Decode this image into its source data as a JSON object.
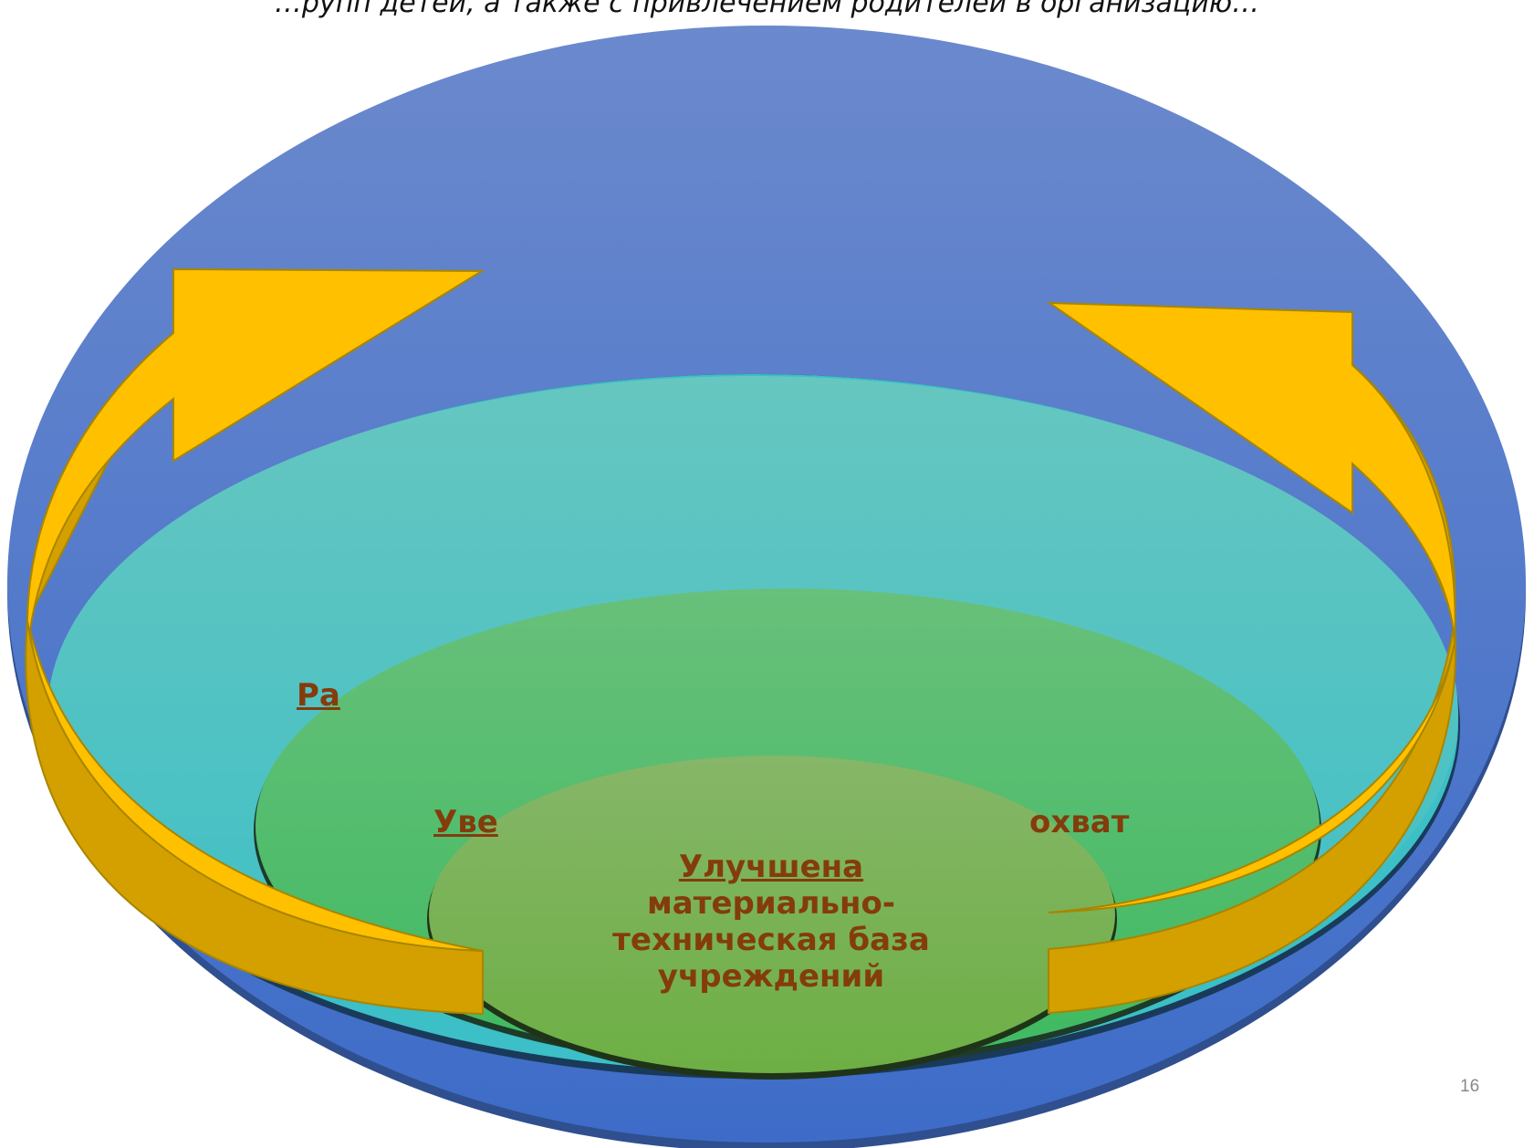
{
  "header": {
    "cropped_caption": "…рупп детей, а также с привлечением родителей в организацию…"
  },
  "diagram": {
    "outer_label_fragment": "Ра",
    "middle_label_left_fragment": "Уве",
    "middle_label_right_fragment": "охват",
    "center_label": {
      "underlined": "Улучшена",
      "line2": "материально-",
      "line3": "техническая база",
      "line4": "учреждений"
    },
    "colors": {
      "outer_ellipse": "#4a78c8",
      "middle_ellipse": "#4dc4c4",
      "inner_ellipse": "#50be6a",
      "center_ellipse": "#78b25a",
      "arrows": "#ffc000",
      "text": "#843c0c"
    }
  },
  "footer": {
    "page_number": "16"
  }
}
